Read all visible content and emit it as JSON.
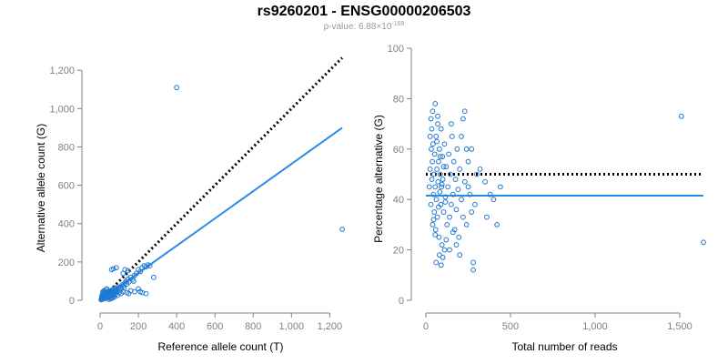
{
  "header": {
    "title": "rs9260201 - ENSG00000206503",
    "pvalue_prefix": "p-value: 6.88×10",
    "pvalue_exponent": "-169"
  },
  "colors": {
    "points": "#1f78d1",
    "fit_line": "#2b8ce6",
    "reference_line": "#000000",
    "axis": "#808080"
  },
  "chart_data": [
    {
      "type": "scatter",
      "xlabel": "Reference allele count (T)",
      "ylabel": "Alternative allele count (G)",
      "xlim": [
        0,
        1260
      ],
      "ylim": [
        0,
        1220
      ],
      "x_ticks": [
        0,
        200,
        400,
        600,
        800,
        1000,
        1200
      ],
      "x_tick_labels": [
        "0",
        "200",
        "400",
        "600",
        "800",
        "1,000",
        "1,200"
      ],
      "y_ticks": [
        0,
        200,
        400,
        600,
        800,
        1000,
        1200
      ],
      "y_tick_labels": [
        "0",
        "200",
        "400",
        "600",
        "800",
        "1,000",
        "1,200"
      ],
      "grid": false,
      "points": [
        [
          5,
          3
        ],
        [
          8,
          10
        ],
        [
          10,
          5
        ],
        [
          12,
          15
        ],
        [
          15,
          20
        ],
        [
          18,
          8
        ],
        [
          20,
          25
        ],
        [
          22,
          12
        ],
        [
          25,
          30
        ],
        [
          28,
          18
        ],
        [
          30,
          35
        ],
        [
          32,
          22
        ],
        [
          35,
          40
        ],
        [
          38,
          28
        ],
        [
          40,
          45
        ],
        [
          42,
          15
        ],
        [
          45,
          38
        ],
        [
          48,
          20
        ],
        [
          50,
          48
        ],
        [
          52,
          30
        ],
        [
          55,
          42
        ],
        [
          58,
          25
        ],
        [
          60,
          52
        ],
        [
          62,
          35
        ],
        [
          65,
          45
        ],
        [
          68,
          30
        ],
        [
          70,
          55
        ],
        [
          72,
          40
        ],
        [
          75,
          35
        ],
        [
          78,
          50
        ],
        [
          80,
          60
        ],
        [
          85,
          45
        ],
        [
          90,
          55
        ],
        [
          95,
          65
        ],
        [
          100,
          50
        ],
        [
          105,
          70
        ],
        [
          110,
          60
        ],
        [
          115,
          80
        ],
        [
          120,
          75
        ],
        [
          125,
          65
        ],
        [
          130,
          90
        ],
        [
          135,
          100
        ],
        [
          140,
          85
        ],
        [
          145,
          110
        ],
        [
          150,
          95
        ],
        [
          160,
          120
        ],
        [
          170,
          110
        ],
        [
          180,
          130
        ],
        [
          190,
          140
        ],
        [
          200,
          160
        ],
        [
          210,
          150
        ],
        [
          220,
          170
        ],
        [
          230,
          180
        ],
        [
          240,
          175
        ],
        [
          250,
          185
        ],
        [
          260,
          180
        ],
        [
          15,
          45
        ],
        [
          20,
          50
        ],
        [
          25,
          40
        ],
        [
          30,
          55
        ],
        [
          35,
          60
        ],
        [
          12,
          30
        ],
        [
          18,
          40
        ],
        [
          22,
          35
        ],
        [
          8,
          20
        ],
        [
          40,
          20
        ],
        [
          50,
          15
        ],
        [
          60,
          20
        ],
        [
          70,
          25
        ],
        [
          80,
          30
        ],
        [
          90,
          25
        ],
        [
          100,
          40
        ],
        [
          110,
          35
        ],
        [
          120,
          45
        ],
        [
          140,
          40
        ],
        [
          150,
          35
        ],
        [
          160,
          50
        ],
        [
          200,
          60
        ],
        [
          210,
          45
        ],
        [
          220,
          40
        ],
        [
          240,
          35
        ],
        [
          280,
          120
        ],
        [
          60,
          160
        ],
        [
          70,
          165
        ],
        [
          85,
          170
        ],
        [
          120,
          140
        ],
        [
          130,
          160
        ],
        [
          145,
          155
        ],
        [
          180,
          45
        ],
        [
          175,
          100
        ],
        [
          30,
          10
        ],
        [
          45,
          5
        ],
        [
          55,
          8
        ],
        [
          65,
          12
        ],
        [
          75,
          18
        ],
        [
          35,
          25
        ],
        [
          48,
          35
        ],
        [
          58,
          45
        ],
        [
          68,
          55
        ],
        [
          78,
          65
        ],
        [
          400,
          1110
        ],
        [
          1265,
          370
        ]
      ],
      "fit_line": [
        [
          0,
          0
        ],
        [
          1265,
          900
        ]
      ],
      "reference_line": [
        [
          0,
          0
        ],
        [
          1265,
          1265
        ]
      ]
    },
    {
      "type": "scatter",
      "xlabel": "Total number of reads",
      "ylabel": "Percentage alternative (G)",
      "xlim": [
        0,
        1640
      ],
      "ylim": [
        0,
        100
      ],
      "x_ticks": [
        0,
        500,
        1000,
        1500
      ],
      "x_tick_labels": [
        "0",
        "500",
        "1,000",
        "1,500"
      ],
      "y_ticks": [
        0,
        20,
        40,
        60,
        80,
        100
      ],
      "y_tick_labels": [
        "0",
        "20",
        "40",
        "60",
        "80",
        "100"
      ],
      "grid": false,
      "points": [
        [
          20,
          45
        ],
        [
          25,
          52
        ],
        [
          30,
          38
        ],
        [
          32,
          60
        ],
        [
          35,
          48
        ],
        [
          38,
          55
        ],
        [
          40,
          30
        ],
        [
          42,
          62
        ],
        [
          45,
          42
        ],
        [
          48,
          50
        ],
        [
          50,
          35
        ],
        [
          52,
          58
        ],
        [
          55,
          45
        ],
        [
          58,
          28
        ],
        [
          60,
          65
        ],
        [
          62,
          40
        ],
        [
          65,
          52
        ],
        [
          68,
          33
        ],
        [
          70,
          70
        ],
        [
          72,
          47
        ],
        [
          75,
          55
        ],
        [
          78,
          25
        ],
        [
          80,
          60
        ],
        [
          82,
          43
        ],
        [
          85,
          50
        ],
        [
          88,
          38
        ],
        [
          90,
          68
        ],
        [
          92,
          45
        ],
        [
          95,
          22
        ],
        [
          98,
          57
        ],
        [
          100,
          48
        ],
        [
          105,
          35
        ],
        [
          110,
          62
        ],
        [
          115,
          41
        ],
        [
          120,
          53
        ],
        [
          125,
          30
        ],
        [
          130,
          45
        ],
        [
          135,
          58
        ],
        [
          140,
          20
        ],
        [
          145,
          50
        ],
        [
          150,
          38
        ],
        [
          155,
          65
        ],
        [
          160,
          42
        ],
        [
          165,
          55
        ],
        [
          170,
          28
        ],
        [
          175,
          48
        ],
        [
          180,
          36
        ],
        [
          185,
          60
        ],
        [
          190,
          44
        ],
        [
          195,
          25
        ],
        [
          200,
          52
        ],
        [
          210,
          40
        ],
        [
          220,
          33
        ],
        [
          230,
          47
        ],
        [
          240,
          30
        ],
        [
          250,
          55
        ],
        [
          260,
          42
        ],
        [
          270,
          35
        ],
        [
          280,
          15
        ],
        [
          290,
          38
        ],
        [
          30,
          72
        ],
        [
          40,
          75
        ],
        [
          55,
          78
        ],
        [
          70,
          73
        ],
        [
          60,
          15
        ],
        [
          80,
          18
        ],
        [
          90,
          14
        ],
        [
          100,
          17
        ],
        [
          110,
          20
        ],
        [
          120,
          24
        ],
        [
          140,
          33
        ],
        [
          150,
          70
        ],
        [
          160,
          27
        ],
        [
          180,
          22
        ],
        [
          200,
          18
        ],
        [
          210,
          65
        ],
        [
          220,
          72
        ],
        [
          230,
          75
        ],
        [
          240,
          60
        ],
        [
          250,
          45
        ],
        [
          300,
          50
        ],
        [
          320,
          52
        ],
        [
          350,
          47
        ],
        [
          360,
          33
        ],
        [
          380,
          42
        ],
        [
          400,
          40
        ],
        [
          420,
          30
        ],
        [
          440,
          45
        ],
        [
          280,
          12
        ],
        [
          270,
          60
        ],
        [
          25,
          65
        ],
        [
          35,
          68
        ],
        [
          45,
          32
        ],
        [
          55,
          26
        ],
        [
          65,
          63
        ],
        [
          75,
          37
        ],
        [
          85,
          57
        ],
        [
          95,
          46
        ],
        [
          105,
          53
        ],
        [
          115,
          39
        ],
        [
          1510,
          73
        ],
        [
          1640,
          23
        ]
      ],
      "fit_line": [
        [
          0,
          41.5
        ],
        [
          1640,
          41.5
        ]
      ],
      "reference_line": [
        [
          0,
          50
        ],
        [
          1640,
          50
        ]
      ]
    }
  ]
}
